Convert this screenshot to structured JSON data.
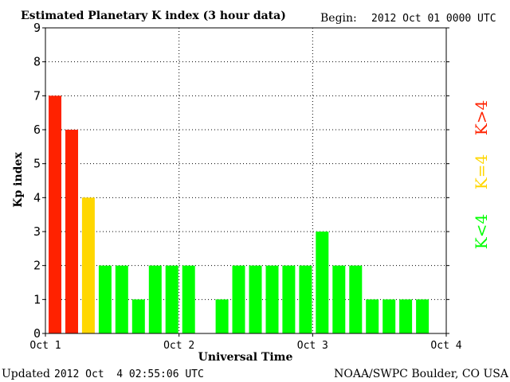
{
  "header": {
    "title": "Estimated Planetary K index (3 hour data)",
    "begin_label": "Begin:",
    "begin_value": "2012 Oct 01 0000 UTC"
  },
  "footer": {
    "updated_label": "Updated",
    "updated_value": "2012 Oct  4 02:55:06 UTC",
    "credit": "NOAA/SWPC Boulder, CO USA"
  },
  "legend": {
    "above": "K>4",
    "equal": "K=4",
    "below": "K<4"
  },
  "colors": {
    "above": "#ff2200",
    "equal": "#ffd700",
    "below": "#00ff00",
    "axis": "#000000",
    "grid": "#000000"
  },
  "chart_data": {
    "type": "bar",
    "title": "Estimated Planetary K index (3 hour data)",
    "xlabel": "Universal Time",
    "ylabel": "Kp index",
    "ylim": [
      0,
      9
    ],
    "yticks": [
      "0",
      "1",
      "2",
      "3",
      "4",
      "5",
      "6",
      "7",
      "8",
      "9"
    ],
    "xticks": [
      "Oct 1",
      "Oct 2",
      "Oct 3",
      "Oct 4"
    ],
    "grid": true,
    "bins_per_day": 8,
    "days": 3,
    "values": [
      7,
      6,
      4,
      2,
      2,
      1,
      2,
      2,
      2,
      0,
      1,
      2,
      2,
      2,
      2,
      2,
      3,
      2,
      2,
      1,
      1,
      1,
      1
    ]
  }
}
